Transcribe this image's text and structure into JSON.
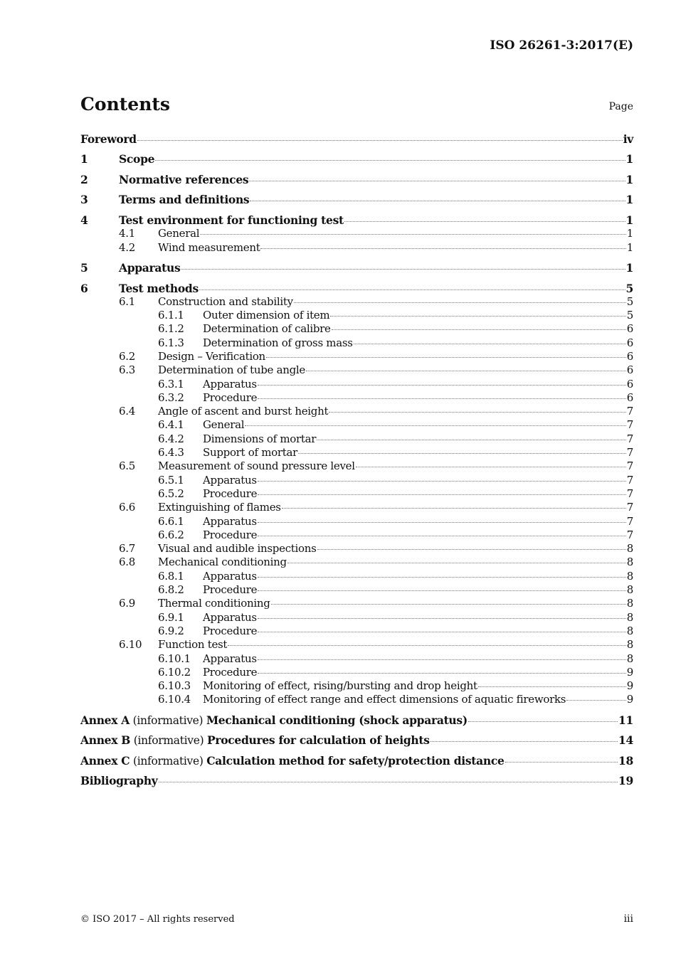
{
  "header": {
    "doc_id": "ISO 26261-3:2017(E)"
  },
  "title": "Contents",
  "page_label": "Page",
  "entries": [
    {
      "level": 1,
      "num": "",
      "title": "Foreword",
      "page": "iv"
    },
    {
      "level": 1,
      "num": "1",
      "title": "Scope",
      "page": "1"
    },
    {
      "level": 1,
      "num": "2",
      "title": "Normative references",
      "page": "1"
    },
    {
      "level": 1,
      "num": "3",
      "title": "Terms and definitions",
      "page": "1"
    },
    {
      "level": 1,
      "num": "4",
      "title": "Test environment for functioning test",
      "page": "1"
    },
    {
      "level": 2,
      "num": "4.1",
      "title": "General",
      "page": "1"
    },
    {
      "level": 2,
      "num": "4.2",
      "title": "Wind measurement",
      "page": "1"
    },
    {
      "level": 1,
      "num": "5",
      "title": "Apparatus",
      "page": "1"
    },
    {
      "level": 1,
      "num": "6",
      "title": "Test methods",
      "page": "5"
    },
    {
      "level": 2,
      "num": "6.1",
      "title": "Construction and stability",
      "page": "5"
    },
    {
      "level": 3,
      "num": "6.1.1",
      "title": "Outer dimension of item",
      "page": "5"
    },
    {
      "level": 3,
      "num": "6.1.2",
      "title": "Determination of calibre",
      "page": "6"
    },
    {
      "level": 3,
      "num": "6.1.3",
      "title": "Determination of gross mass",
      "page": "6"
    },
    {
      "level": 2,
      "num": "6.2",
      "title": "Design – Verification",
      "page": "6"
    },
    {
      "level": 2,
      "num": "6.3",
      "title": "Determination of tube angle",
      "page": "6"
    },
    {
      "level": 3,
      "num": "6.3.1",
      "title": "Apparatus",
      "page": "6"
    },
    {
      "level": 3,
      "num": "6.3.2",
      "title": "Procedure",
      "page": "6"
    },
    {
      "level": 2,
      "num": "6.4",
      "title": "Angle of ascent and burst height",
      "page": "7"
    },
    {
      "level": 3,
      "num": "6.4.1",
      "title": "General",
      "page": "7"
    },
    {
      "level": 3,
      "num": "6.4.2",
      "title": "Dimensions of mortar",
      "page": "7"
    },
    {
      "level": 3,
      "num": "6.4.3",
      "title": "Support of mortar",
      "page": "7"
    },
    {
      "level": 2,
      "num": "6.5",
      "title": "Measurement of sound pressure level",
      "page": "7"
    },
    {
      "level": 3,
      "num": "6.5.1",
      "title": "Apparatus",
      "page": "7"
    },
    {
      "level": 3,
      "num": "6.5.2",
      "title": "Procedure",
      "page": "7"
    },
    {
      "level": 2,
      "num": "6.6",
      "title": "Extinguishing of flames",
      "page": "7"
    },
    {
      "level": 3,
      "num": "6.6.1",
      "title": "Apparatus",
      "page": "7"
    },
    {
      "level": 3,
      "num": "6.6.2",
      "title": "Procedure",
      "page": "7"
    },
    {
      "level": 2,
      "num": "6.7",
      "title": "Visual and audible inspections",
      "page": "8"
    },
    {
      "level": 2,
      "num": "6.8",
      "title": "Mechanical conditioning",
      "page": "8"
    },
    {
      "level": 3,
      "num": "6.8.1",
      "title": "Apparatus",
      "page": "8"
    },
    {
      "level": 3,
      "num": "6.8.2",
      "title": "Procedure",
      "page": "8"
    },
    {
      "level": 2,
      "num": "6.9",
      "title": "Thermal conditioning",
      "page": "8"
    },
    {
      "level": 3,
      "num": "6.9.1",
      "title": "Apparatus",
      "page": "8"
    },
    {
      "level": 3,
      "num": "6.9.2",
      "title": "Procedure",
      "page": "8"
    },
    {
      "level": 2,
      "num": "6.10",
      "title": "Function test",
      "page": "8"
    },
    {
      "level": 3,
      "num": "6.10.1",
      "title": "Apparatus",
      "page": "8"
    },
    {
      "level": 3,
      "num": "6.10.2",
      "title": "Procedure",
      "page": "9"
    },
    {
      "level": 3,
      "num": "6.10.3",
      "title": "Monitoring of effect, rising/bursting and drop height",
      "page": "9"
    },
    {
      "level": 3,
      "num": "6.10.4",
      "title": "Monitoring of effect range and effect dimensions of aquatic fireworks",
      "page": "9"
    },
    {
      "level": "annex",
      "label": "Annex A",
      "note": "(informative)",
      "title": "Mechanical conditioning (shock apparatus)",
      "page": "11"
    },
    {
      "level": "annex",
      "label": "Annex B",
      "note": "(informative)",
      "title": "Procedures for calculation of heights",
      "page": "14"
    },
    {
      "level": "annex",
      "label": "Annex C",
      "note": "(informative)",
      "title": "Calculation method for safety/protection distance",
      "page": "18"
    },
    {
      "level": 1,
      "num": "",
      "title": "Bibliography",
      "page": "19"
    }
  ],
  "footer": {
    "copyright": "© ISO 2017 – All rights reserved",
    "page_number": "iii"
  }
}
